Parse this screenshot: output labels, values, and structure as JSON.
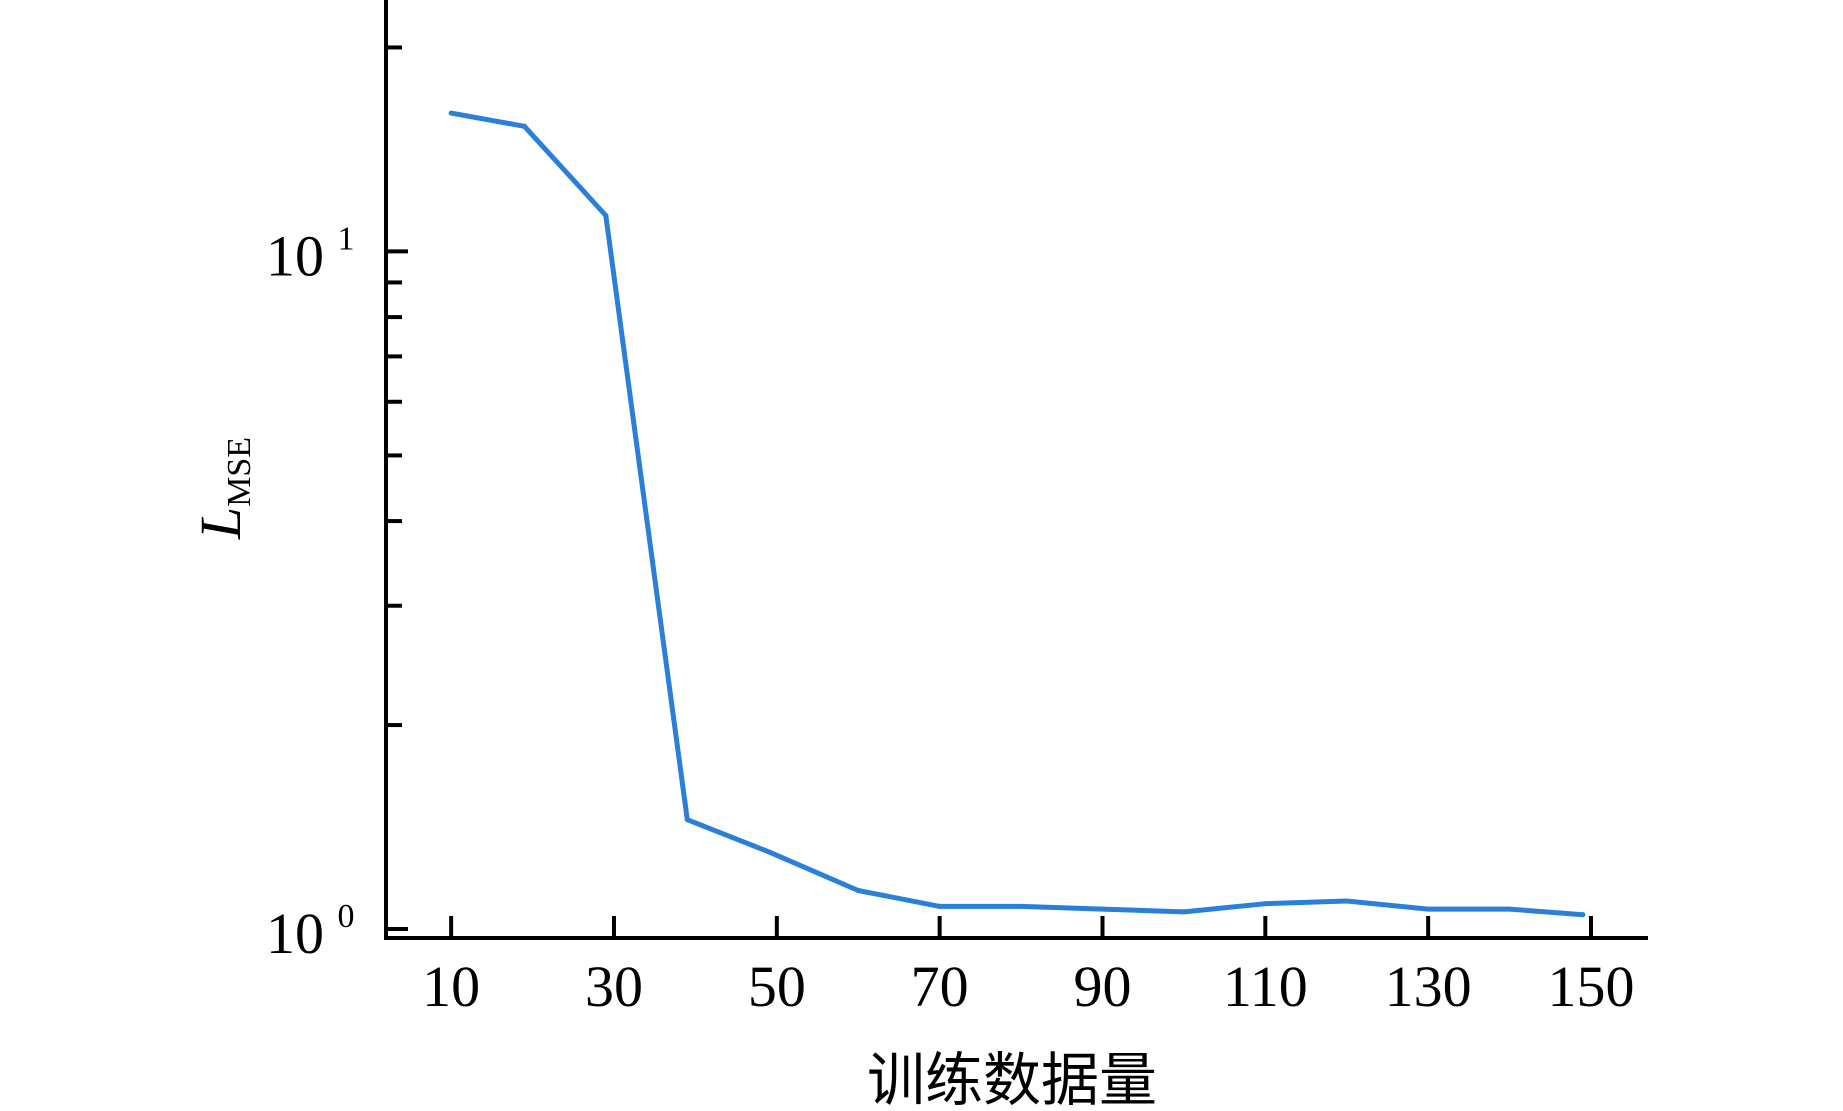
{
  "chart_data": {
    "type": "line",
    "xlabel": "训练数据量",
    "ylabel": {
      "main": "L",
      "sub": "MSE"
    },
    "yscale": "log",
    "xlim": [
      2,
      157
    ],
    "ylim": [
      0.97,
      23.5
    ],
    "x_ticks": [
      10,
      30,
      50,
      70,
      90,
      110,
      130,
      150
    ],
    "y_ticks": [
      {
        "value": 1,
        "base": "10",
        "exp": "0"
      },
      {
        "value": 10,
        "base": "10",
        "exp": "1"
      }
    ],
    "y_minor_ticks": [
      2,
      3,
      4,
      5,
      6,
      7,
      8,
      9,
      20
    ],
    "grid": false,
    "series": [
      {
        "color": "#2a7fd9",
        "x": [
          10,
          19,
          29,
          39,
          49,
          60,
          70,
          80,
          90,
          100,
          110,
          120,
          130,
          140,
          149
        ],
        "y": [
          16.0,
          15.3,
          11.3,
          1.45,
          1.3,
          1.14,
          1.08,
          1.08,
          1.07,
          1.06,
          1.09,
          1.1,
          1.07,
          1.07,
          1.05
        ]
      }
    ]
  }
}
